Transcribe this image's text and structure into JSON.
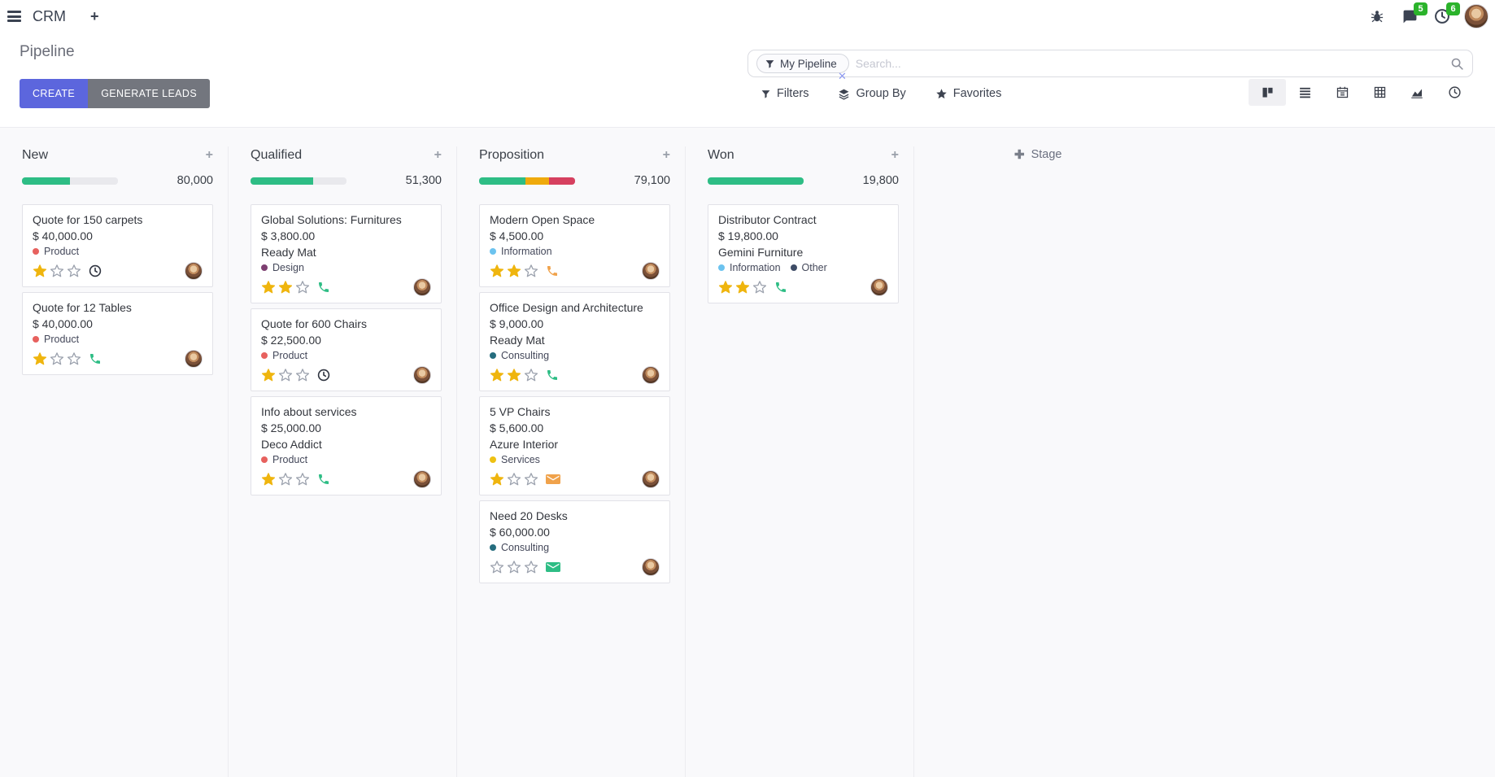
{
  "navbar": {
    "app_name": "CRM",
    "messages_badge": "5",
    "activities_badge": "6"
  },
  "control_panel": {
    "title": "Pipeline",
    "create_label": "CREATE",
    "generate_leads_label": "GENERATE LEADS",
    "search": {
      "facet_label": "My Pipeline",
      "placeholder": "Search..."
    },
    "filters_label": "Filters",
    "group_by_label": "Group By",
    "favorites_label": "Favorites"
  },
  "kanban": {
    "add_stage_label": "Stage",
    "columns": [
      {
        "name": "New",
        "amount": "80,000",
        "progress": [
          {
            "pct": 50,
            "color": "#2ebd85"
          }
        ],
        "cards": [
          {
            "title": "Quote for 150 carpets",
            "amount": "$ 40,000.00",
            "tags": [
              {
                "label": "Product",
                "color": "#e7615e"
              }
            ],
            "stars": 1,
            "activity": {
              "type": "clock",
              "color": "#2f3440"
            }
          },
          {
            "title": "Quote for 12 Tables",
            "amount": "$ 40,000.00",
            "tags": [
              {
                "label": "Product",
                "color": "#e7615e"
              }
            ],
            "stars": 1,
            "activity": {
              "type": "phone",
              "color": "#2ebd85"
            }
          }
        ]
      },
      {
        "name": "Qualified",
        "amount": "51,300",
        "progress": [
          {
            "pct": 65,
            "color": "#2ebd85"
          }
        ],
        "cards": [
          {
            "title": "Global Solutions: Furnitures",
            "amount": "$ 3,800.00",
            "company": "Ready Mat",
            "tags": [
              {
                "label": "Design",
                "color": "#7d3f71"
              }
            ],
            "stars": 2,
            "activity": {
              "type": "phone",
              "color": "#2ebd85"
            }
          },
          {
            "title": "Quote for 600 Chairs",
            "amount": "$ 22,500.00",
            "tags": [
              {
                "label": "Product",
                "color": "#e7615e"
              }
            ],
            "stars": 1,
            "activity": {
              "type": "clock",
              "color": "#2f3440"
            }
          },
          {
            "title": "Info about services",
            "amount": "$ 25,000.00",
            "company": "Deco Addict",
            "tags": [
              {
                "label": "Product",
                "color": "#e7615e"
              }
            ],
            "stars": 1,
            "activity": {
              "type": "phone",
              "color": "#2ebd85"
            }
          }
        ]
      },
      {
        "name": "Proposition",
        "amount": "79,100",
        "progress": [
          {
            "pct": 48,
            "color": "#2ebd85"
          },
          {
            "pct": 25,
            "color": "#efaa0c"
          },
          {
            "pct": 27,
            "color": "#d6405f"
          }
        ],
        "cards": [
          {
            "title": "Modern Open Space",
            "amount": "$ 4,500.00",
            "tags": [
              {
                "label": "Information",
                "color": "#6cc3ef"
              }
            ],
            "stars": 2,
            "activity": {
              "type": "phone",
              "color": "#f0a24b"
            }
          },
          {
            "title": "Office Design and Architecture",
            "amount": "$ 9,000.00",
            "company": "Ready Mat",
            "tags": [
              {
                "label": "Consulting",
                "color": "#256d7e"
              }
            ],
            "stars": 2,
            "activity": {
              "type": "phone",
              "color": "#2ebd85"
            }
          },
          {
            "title": "5 VP Chairs",
            "amount": "$ 5,600.00",
            "company": "Azure Interior",
            "tags": [
              {
                "label": "Services",
                "color": "#eec113"
              }
            ],
            "stars": 1,
            "activity": {
              "type": "mail",
              "color": "#f0a24b"
            }
          },
          {
            "title": "Need 20 Desks",
            "amount": "$ 60,000.00",
            "tags": [
              {
                "label": "Consulting",
                "color": "#256d7e"
              }
            ],
            "stars": 0,
            "activity": {
              "type": "mail",
              "color": "#2ebd85"
            }
          }
        ]
      },
      {
        "name": "Won",
        "amount": "19,800",
        "progress": [
          {
            "pct": 100,
            "color": "#2ebd85"
          }
        ],
        "cards": [
          {
            "title": "Distributor Contract",
            "amount": "$ 19,800.00",
            "company": "Gemini Furniture",
            "tags": [
              {
                "label": "Information",
                "color": "#6cc3ef"
              },
              {
                "label": "Other",
                "color": "#3e4c66"
              }
            ],
            "stars": 2,
            "activity": {
              "type": "phone",
              "color": "#2ebd85"
            }
          }
        ]
      }
    ]
  }
}
